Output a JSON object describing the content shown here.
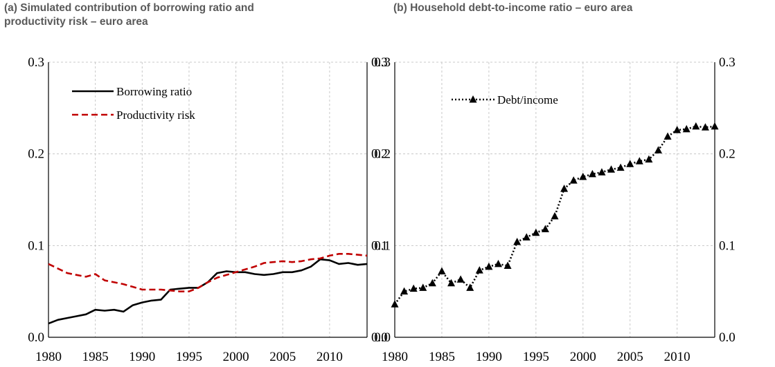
{
  "chart_data": [
    {
      "type": "line",
      "title": "(a) Simulated contribution of borrowing ratio and productivity risk – euro area",
      "title_lines": [
        "(a) Simulated contribution of borrowing ratio and",
        "productivity risk – euro area"
      ],
      "x": [
        1980,
        1981,
        1982,
        1983,
        1984,
        1985,
        1986,
        1987,
        1988,
        1989,
        1990,
        1991,
        1992,
        1993,
        1994,
        1995,
        1996,
        1997,
        1998,
        1999,
        2000,
        2001,
        2002,
        2003,
        2004,
        2005,
        2006,
        2007,
        2008,
        2009,
        2010,
        2011,
        2012,
        2013,
        2014
      ],
      "xlim": [
        1980,
        2014
      ],
      "x_ticks": [
        1980,
        1985,
        1990,
        1995,
        2000,
        2005,
        2010
      ],
      "ylim": [
        0,
        0.3
      ],
      "y_ticks": [
        0.0,
        0.1,
        0.2,
        0.3
      ],
      "y_tick_labels": [
        "0.0",
        "0.1",
        "0.2",
        "0.3"
      ],
      "y_right_tick_labels": [
        "0.0",
        "0.1",
        "0.2",
        "0.3"
      ],
      "grid": true,
      "legend_position": "top-left",
      "series": [
        {
          "name": "Borrowing ratio",
          "style": "solid",
          "color": "#000000",
          "values": [
            0.015,
            0.019,
            0.021,
            0.023,
            0.025,
            0.03,
            0.029,
            0.03,
            0.028,
            0.035,
            0.038,
            0.04,
            0.041,
            0.052,
            0.053,
            0.054,
            0.054,
            0.06,
            0.07,
            0.072,
            0.071,
            0.071,
            0.069,
            0.068,
            0.069,
            0.071,
            0.071,
            0.073,
            0.077,
            0.085,
            0.084,
            0.08,
            0.081,
            0.079,
            0.08
          ]
        },
        {
          "name": "Productivity risk",
          "style": "dashed",
          "color": "#C00000",
          "values": [
            0.08,
            0.075,
            0.07,
            0.068,
            0.066,
            0.069,
            0.062,
            0.06,
            0.058,
            0.055,
            0.052,
            0.052,
            0.052,
            0.051,
            0.05,
            0.05,
            0.054,
            0.06,
            0.065,
            0.068,
            0.071,
            0.074,
            0.077,
            0.081,
            0.082,
            0.083,
            0.082,
            0.083,
            0.085,
            0.086,
            0.089,
            0.091,
            0.091,
            0.09,
            0.089
          ]
        }
      ]
    },
    {
      "type": "line",
      "title": "(b) Household debt-to-income ratio – euro area",
      "title_lines": [
        "(b) Household debt-to-income ratio – euro area"
      ],
      "x": [
        1980,
        1981,
        1982,
        1983,
        1984,
        1985,
        1986,
        1987,
        1988,
        1989,
        1990,
        1991,
        1992,
        1993,
        1994,
        1995,
        1996,
        1997,
        1998,
        1999,
        2000,
        2001,
        2002,
        2003,
        2004,
        2005,
        2006,
        2007,
        2008,
        2009,
        2010,
        2011,
        2012,
        2013,
        2014
      ],
      "xlim": [
        1980,
        2014
      ],
      "x_ticks": [
        1980,
        1985,
        1990,
        1995,
        2000,
        2005,
        2010
      ],
      "ylim": [
        0,
        0.3
      ],
      "y_ticks": [
        0.0,
        0.1,
        0.2,
        0.3
      ],
      "y_tick_labels": [
        "0.0",
        "0.1",
        "0.2",
        "0.3"
      ],
      "y_right_tick_labels": [
        "0.0",
        "0.1",
        "0.2",
        "0.3"
      ],
      "grid": true,
      "legend_position": "top-left",
      "series": [
        {
          "name": "Debt/income",
          "style": "dotted-triangle",
          "color": "#000000",
          "values": [
            0.036,
            0.05,
            0.053,
            0.054,
            0.059,
            0.072,
            0.059,
            0.063,
            0.054,
            0.073,
            0.077,
            0.08,
            0.078,
            0.104,
            0.109,
            0.114,
            0.118,
            0.132,
            0.162,
            0.171,
            0.175,
            0.178,
            0.18,
            0.183,
            0.185,
            0.189,
            0.192,
            0.194,
            0.204,
            0.219,
            0.226,
            0.227,
            0.23,
            0.229,
            0.23
          ]
        }
      ]
    }
  ]
}
